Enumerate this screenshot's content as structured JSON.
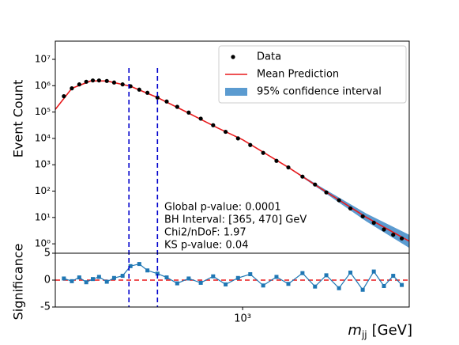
{
  "chart_data": {
    "type": "scatter",
    "y_label": "Event Count",
    "y2_label": "Significance",
    "x_label": {
      "symbol": "m",
      "subscript": "jj",
      "unit": "[GeV]"
    },
    "log_x": true,
    "log_y": true,
    "xlim": [
      190,
      4380
    ],
    "ylim": [
      0.44,
      49000000
    ],
    "y2lim": [
      -5,
      5
    ],
    "xticks": [
      {
        "value": 1000,
        "label": "10³"
      }
    ],
    "yticks": [
      {
        "value": 1,
        "label": "10⁰"
      },
      {
        "value": 10,
        "label": "10¹"
      },
      {
        "value": 100,
        "label": "10²"
      },
      {
        "value": 1000,
        "label": "10³"
      },
      {
        "value": 10000,
        "label": "10⁴"
      },
      {
        "value": 100000,
        "label": "10⁵"
      },
      {
        "value": 1000000,
        "label": "10⁶"
      },
      {
        "value": 10000000,
        "label": "10⁷"
      }
    ],
    "y2ticks": [
      -5,
      0,
      5
    ],
    "legend": "upper right",
    "data": {
      "name": "Data",
      "color": "#000000",
      "x": [
        205,
        220,
        235,
        250,
        265,
        280,
        300,
        320,
        345,
        370,
        400,
        430,
        470,
        510,
        560,
        620,
        690,
        770,
        860,
        960,
        1070,
        1200,
        1350,
        1500,
        1700,
        1900,
        2100,
        2350,
        2600,
        2900,
        3200,
        3500,
        3800,
        4100
      ],
      "values": [
        398000,
        794000,
        1120000,
        1410000,
        1580000,
        1580000,
        1510000,
        1320000,
        1120000,
        955000,
        708000,
        537000,
        355000,
        251000,
        158000,
        95500,
        56200,
        31600,
        17800,
        10000,
        5620,
        2820,
        1410,
        794,
        355,
        178,
        89,
        45,
        22,
        11,
        6.3,
        3.5,
        2.2,
        1.6
      ],
      "significance": [
        0.3,
        -0.2,
        0.5,
        -0.4,
        0.2,
        0.6,
        -0.3,
        0.4,
        0.8,
        2.6,
        3.0,
        1.8,
        1.2,
        0.5,
        -0.6,
        0.3,
        -0.5,
        0.7,
        -0.8,
        0.4,
        1.1,
        -1.0,
        0.6,
        -0.7,
        1.3,
        -1.2,
        0.9,
        -1.5,
        1.4,
        -1.8,
        1.6,
        -1.1,
        0.8,
        -0.9
      ],
      "significance_color": "#1f77b4"
    },
    "fit": {
      "name": "Mean Prediction",
      "color": "#e8191b",
      "x": [
        190,
        220,
        260,
        300,
        370,
        470,
        600,
        800,
        1000,
        1500,
        2000,
        3000,
        4380
      ],
      "values": [
        126000,
        794000,
        1510000,
        1510000,
        955000,
        355000,
        107000,
        25100,
        8910,
        794,
        126,
        10,
        1.26
      ]
    },
    "band": {
      "name": "95% confidence interval",
      "color": "#5b9bd0",
      "lower": [
        120000,
        780000,
        1490000,
        1490000,
        940000,
        349000,
        105000,
        24600,
        8700,
        770,
        110,
        7,
        0.7
      ],
      "upper": [
        132000,
        808000,
        1530000,
        1530000,
        970000,
        361000,
        109000,
        25600,
        9100,
        820,
        145,
        14,
        2.2
      ]
    },
    "interval": {
      "values": [
        365,
        470
      ],
      "color": "#0000cc"
    },
    "annotations": [
      "Global p-value: 0.0001",
      "BH Interval: [365, 470] GeV",
      "Chi2/nDoF: 1.97",
      "KS p-value: 0.04"
    ]
  }
}
